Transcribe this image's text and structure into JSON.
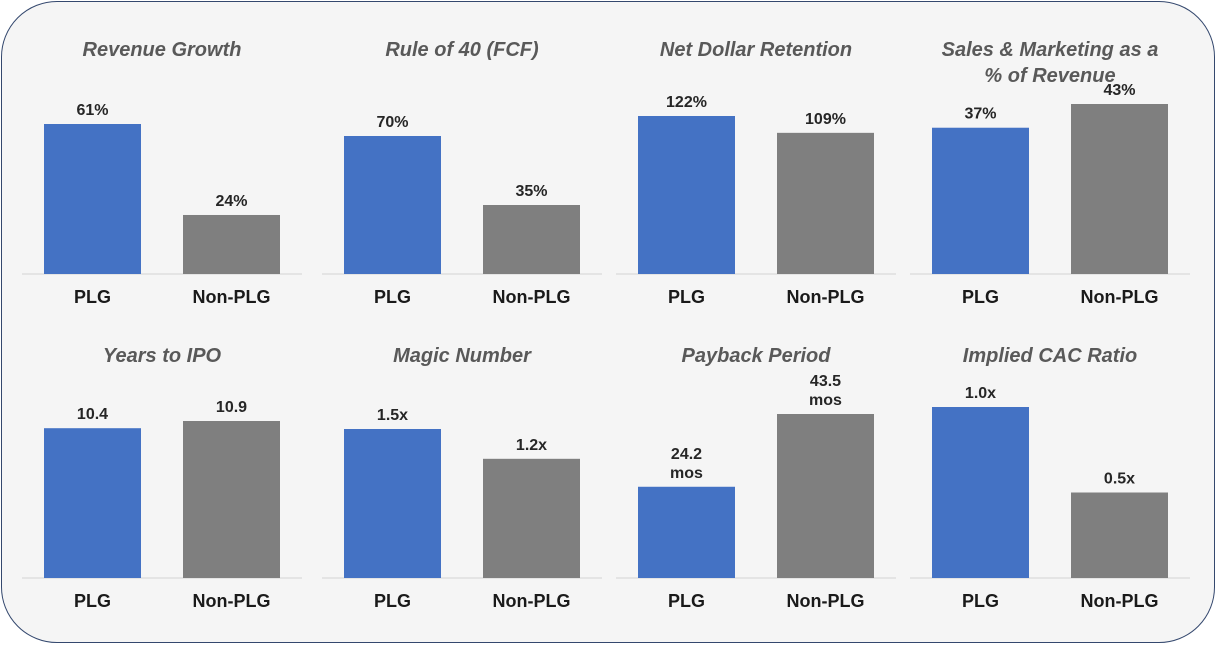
{
  "colors": {
    "plg": "#4472c4",
    "non_plg": "#7f7f7f",
    "border": "#34486e",
    "panel": "#f5f5f5"
  },
  "chart_data": [
    {
      "type": "bar",
      "title": [
        "Revenue Growth"
      ],
      "categories": [
        "PLG",
        "Non-PLG"
      ],
      "values": [
        61,
        24
      ],
      "labels": [
        [
          "61%"
        ],
        [
          "24%"
        ]
      ],
      "unit": "%"
    },
    {
      "type": "bar",
      "title": [
        "Rule of 40 (FCF)"
      ],
      "categories": [
        "PLG",
        "Non-PLG"
      ],
      "values": [
        70,
        35
      ],
      "labels": [
        [
          "70%"
        ],
        [
          "35%"
        ]
      ],
      "unit": "%"
    },
    {
      "type": "bar",
      "title": [
        "Net Dollar Retention"
      ],
      "categories": [
        "PLG",
        "Non-PLG"
      ],
      "values": [
        122,
        109
      ],
      "labels": [
        [
          "122%"
        ],
        [
          "109%"
        ]
      ],
      "unit": "%"
    },
    {
      "type": "bar",
      "title": [
        "Sales & Marketing as a",
        "% of Revenue"
      ],
      "categories": [
        "PLG",
        "Non-PLG"
      ],
      "values": [
        37,
        43
      ],
      "labels": [
        [
          "37%"
        ],
        [
          "43%"
        ]
      ],
      "unit": "%"
    },
    {
      "type": "bar",
      "title": [
        "Years to IPO"
      ],
      "categories": [
        "PLG",
        "Non-PLG"
      ],
      "values": [
        10.4,
        10.9
      ],
      "labels": [
        [
          "10.4"
        ],
        [
          "10.9"
        ]
      ],
      "unit": "years"
    },
    {
      "type": "bar",
      "title": [
        "Magic Number"
      ],
      "categories": [
        "PLG",
        "Non-PLG"
      ],
      "values": [
        1.5,
        1.2
      ],
      "labels": [
        [
          "1.5x"
        ],
        [
          "1.2x"
        ]
      ],
      "unit": "x"
    },
    {
      "type": "bar",
      "title": [
        "Payback Period"
      ],
      "categories": [
        "PLG",
        "Non-PLG"
      ],
      "values": [
        24.2,
        43.5
      ],
      "labels": [
        [
          "24.2",
          "mos"
        ],
        [
          "43.5",
          "mos"
        ]
      ],
      "unit": "mos"
    },
    {
      "type": "bar",
      "title": [
        "Implied CAC Ratio"
      ],
      "categories": [
        "PLG",
        "Non-PLG"
      ],
      "values": [
        1.0,
        0.5
      ],
      "labels": [
        [
          "1.0x"
        ],
        [
          "0.5x"
        ]
      ],
      "unit": "x"
    }
  ]
}
